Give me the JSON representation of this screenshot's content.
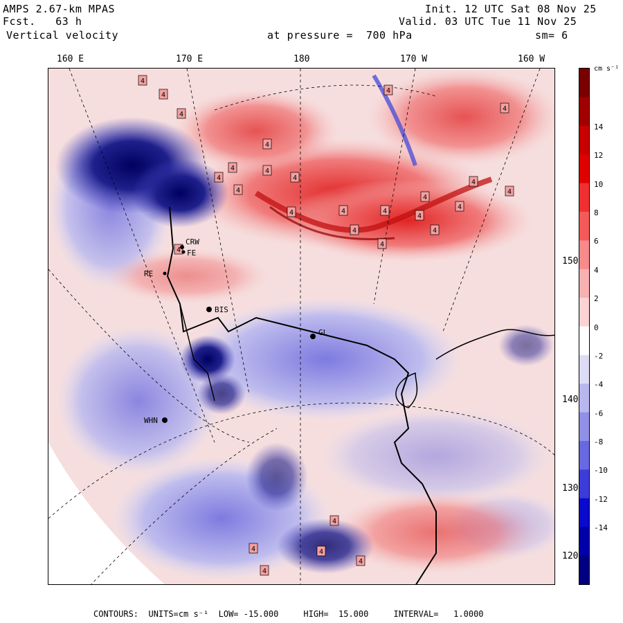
{
  "header": {
    "model": "AMPS 2.67-km MPAS",
    "fcst_label": "Fcst.",
    "fcst_value": "63 h",
    "field": "Vertical velocity",
    "level": "at pressure =  700 hPa",
    "init": "Init. 12 UTC Sat 08 Nov 25",
    "valid": "Valid. 03 UTC Tue 11 Nov 25",
    "smoothing": "sm= 6"
  },
  "map": {
    "longitude_labels": [
      "160 E",
      "170 E",
      "180",
      "170 W",
      "160 W"
    ],
    "latitude_labels": [
      "150 W",
      "140 W",
      "130 W",
      "120 W"
    ],
    "stations": [
      "CRW",
      "BIS",
      "GL",
      "WHN",
      "RE",
      "FE"
    ],
    "contour_marker": "4"
  },
  "colorbar": {
    "units": "cm s⁻¹",
    "tick_labels": [
      "14",
      "12",
      "10",
      "8",
      "6",
      "4",
      "2",
      "0",
      "-2",
      "-4",
      "-6",
      "-8",
      "-10",
      "-12",
      "-14"
    ],
    "colors": [
      "#7a0000",
      "#a00000",
      "#c80000",
      "#e00000",
      "#f03030",
      "#f45a5a",
      "#f78a8a",
      "#f9b0b0",
      "#fbd3d3",
      "#ffffff",
      "#dcdcf6",
      "#b8b8ef",
      "#9090e6",
      "#6868e0",
      "#3c3cd8",
      "#0a0acd",
      "#0000a8",
      "#000080"
    ]
  },
  "footer": {
    "contours": "CONTOURS:  UNITS=cm s⁻¹  LOW= -15.000     HIGH=  15.000     INTERVAL=   1.0000"
  }
}
